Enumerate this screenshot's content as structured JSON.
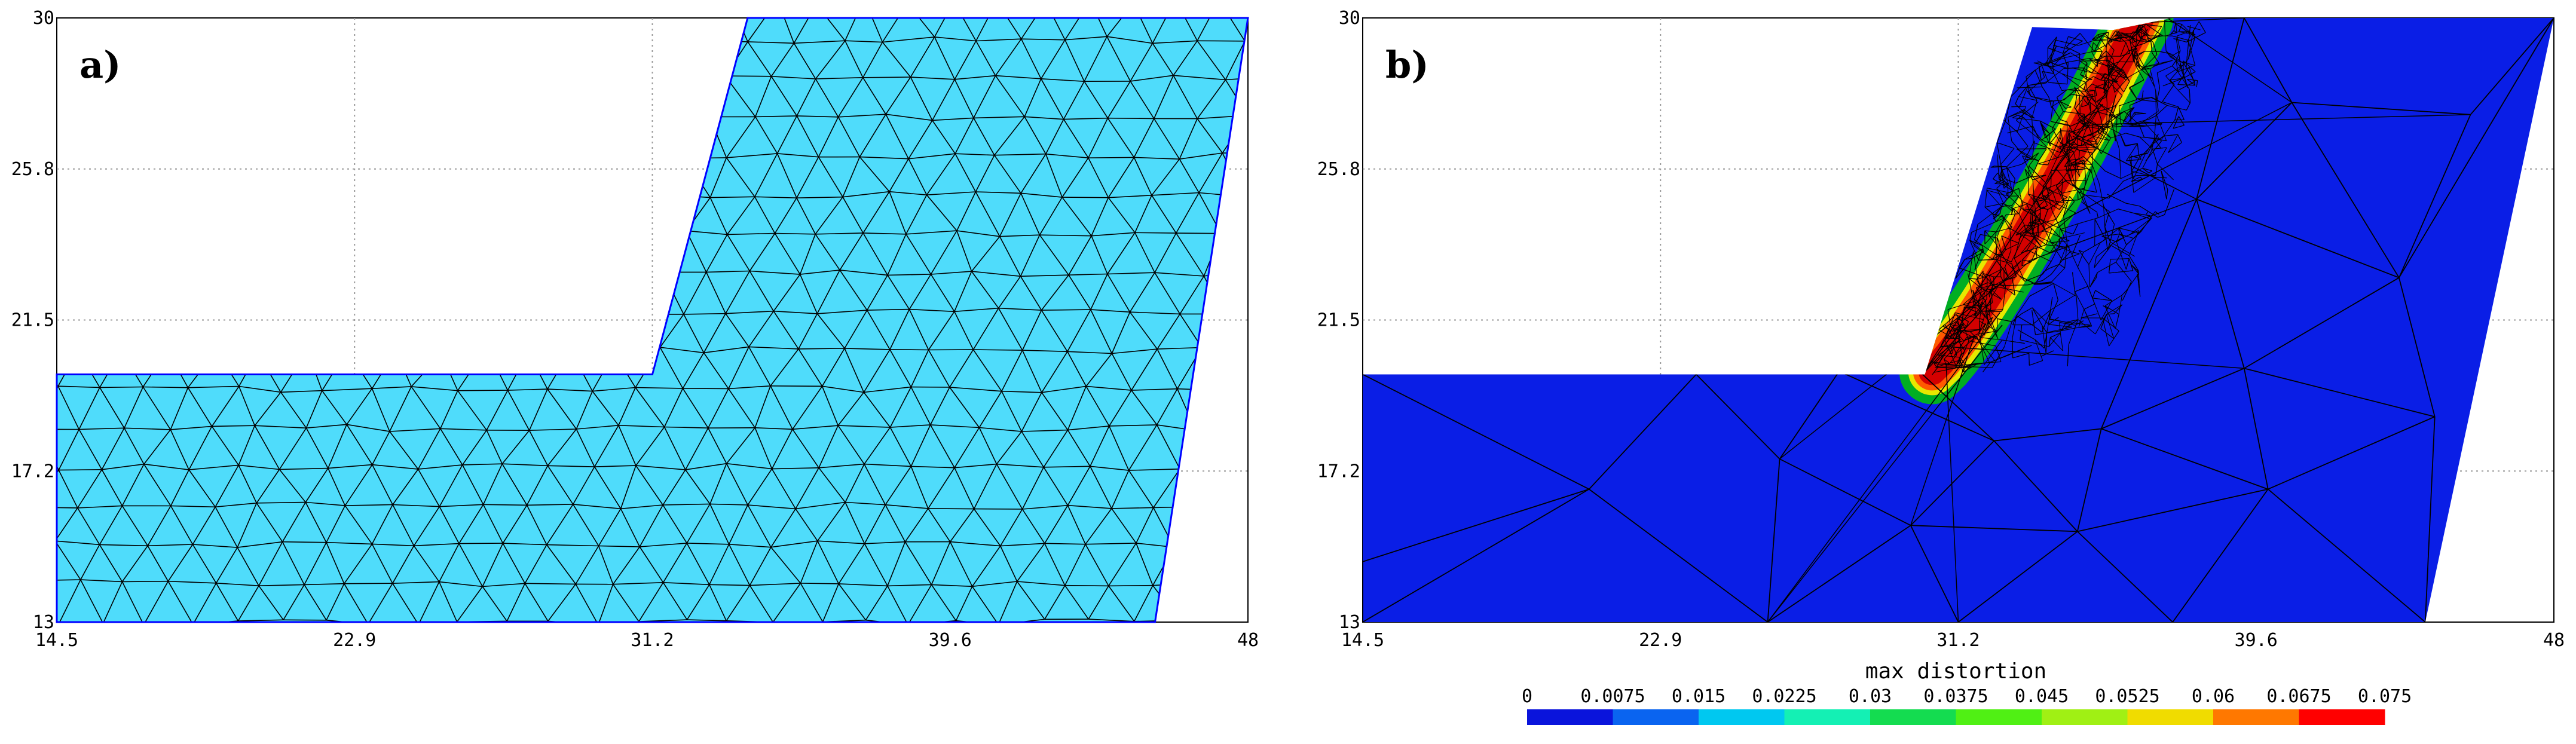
{
  "panels": [
    {
      "label": "a)",
      "x_ticks": [
        "14.5",
        "22.9",
        "31.2",
        "39.6",
        "48"
      ],
      "y_ticks": [
        "13",
        "17.2",
        "21.5",
        "25.8",
        "30"
      ],
      "fill_color": "#4fdcfb",
      "outline_color": "#0000ff",
      "mesh_color": "#000000"
    },
    {
      "label": "b)",
      "x_ticks": [
        "14.5",
        "22.9",
        "31.2",
        "39.6",
        "48"
      ],
      "y_ticks": [
        "13",
        "17.2",
        "21.5",
        "25.8",
        "30"
      ],
      "fill_color": "#0a1ee6",
      "band_colors": [
        "#00c800",
        "#e8e800",
        "#ff5a00",
        "#d40000"
      ],
      "mesh_color": "#000000"
    }
  ],
  "colorbar": {
    "title": "max distortion",
    "labels": [
      "0",
      "0.0075",
      "0.015",
      "0.0225",
      "0.03",
      "0.0375",
      "0.045",
      "0.0525",
      "0.06",
      "0.0675",
      "0.075"
    ],
    "colors": [
      "#0a14dc",
      "#0a64f0",
      "#00c8f0",
      "#14f0b4",
      "#14dc50",
      "#50f014",
      "#a0f014",
      "#f0dc00",
      "#ff7800",
      "#ff0000"
    ]
  }
}
